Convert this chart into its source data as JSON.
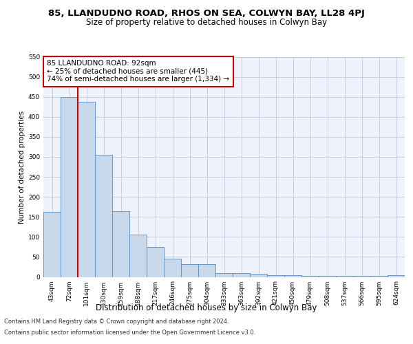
{
  "title": "85, LLANDUDNO ROAD, RHOS ON SEA, COLWYN BAY, LL28 4PJ",
  "subtitle": "Size of property relative to detached houses in Colwyn Bay",
  "xlabel": "Distribution of detached houses by size in Colwyn Bay",
  "ylabel": "Number of detached properties",
  "categories": [
    "43sqm",
    "72sqm",
    "101sqm",
    "130sqm",
    "159sqm",
    "188sqm",
    "217sqm",
    "246sqm",
    "275sqm",
    "304sqm",
    "333sqm",
    "363sqm",
    "392sqm",
    "421sqm",
    "450sqm",
    "479sqm",
    "508sqm",
    "537sqm",
    "566sqm",
    "595sqm",
    "624sqm"
  ],
  "values": [
    162,
    450,
    438,
    305,
    165,
    106,
    75,
    45,
    32,
    32,
    10,
    10,
    8,
    5,
    5,
    2,
    2,
    2,
    2,
    2,
    5
  ],
  "bar_color": "#c9d9ec",
  "bar_edge_color": "#6496c8",
  "highlight_index": 2,
  "highlight_line_color": "#cc0000",
  "annotation_text": "85 LLANDUDNO ROAD: 92sqm\n← 25% of detached houses are smaller (445)\n74% of semi-detached houses are larger (1,334) →",
  "annotation_box_color": "#cc0000",
  "ylim": [
    0,
    550
  ],
  "yticks": [
    0,
    50,
    100,
    150,
    200,
    250,
    300,
    350,
    400,
    450,
    500,
    550
  ],
  "footer_line1": "Contains HM Land Registry data © Crown copyright and database right 2024.",
  "footer_line2": "Contains public sector information licensed under the Open Government Licence v3.0.",
  "bg_color": "#eef2fb",
  "grid_color": "#c0c8e0",
  "title_fontsize": 9.5,
  "subtitle_fontsize": 8.5,
  "xlabel_fontsize": 8.5,
  "ylabel_fontsize": 7.5,
  "tick_fontsize": 6.5,
  "annotation_fontsize": 7.5,
  "footer_fontsize": 6.0
}
